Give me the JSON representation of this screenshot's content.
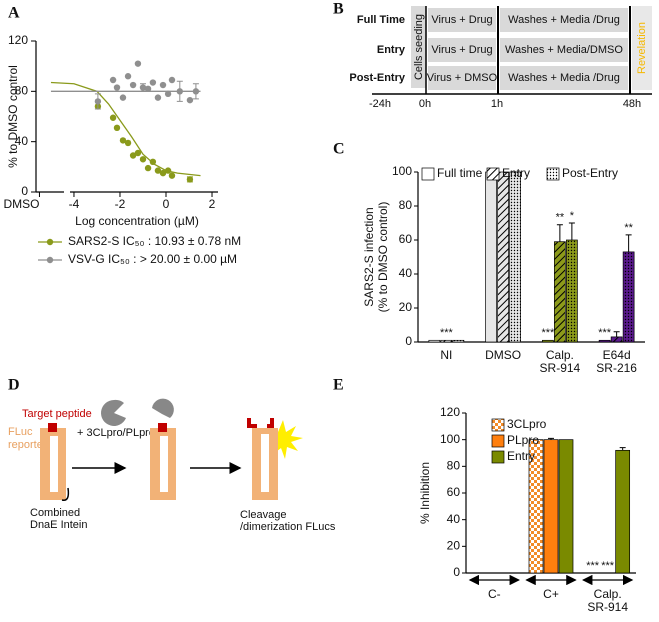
{
  "letters": [
    "A",
    "B",
    "C",
    "D",
    "E"
  ],
  "schedule": {
    "rows": [
      "Full Time",
      "Entry",
      "Post-Entry"
    ],
    "cells": [
      [
        "Virus + Drug",
        "Washes + Media /Drug"
      ],
      [
        "Virus + Drug",
        "Washes + Media/DMSO"
      ],
      [
        "Virus + DMSO",
        "Washes + Media /Drug"
      ]
    ],
    "seeding": "Cells seeding",
    "revelation": "Revelation",
    "times": [
      "-24h",
      "0h",
      "1h",
      "48h"
    ]
  },
  "assay": {
    "target": "Target peptide",
    "reporter": [
      "FLuc",
      "reporter"
    ],
    "intein": [
      "Combined",
      "DnaE Intein"
    ],
    "protease": "+ 3CLpro/PLpro",
    "result": [
      "Cleavage",
      "/dimerization FLucs"
    ]
  },
  "chart_data": [
    {
      "type": "scatter",
      "xlabel": "Log concentration (µM)",
      "ylabel": "% to DMSO control",
      "xlim": [
        -5.65,
        2.26
      ],
      "ylim": [
        0,
        120
      ],
      "xticks": [
        {
          "value": -5.5,
          "label": "DMSO"
        },
        -4,
        -2,
        0,
        2
      ],
      "yticks": [
        0,
        40,
        80,
        120
      ],
      "series": [
        {
          "name": "SARS2-S IC₅₀ : 10.93 ± 0.78 nM",
          "color": "#8a9a1b",
          "x": [
            -2.96,
            -2.3,
            -2.13,
            -1.87,
            -1.65,
            -1.43,
            -1.22,
            -1.0,
            -0.78,
            -0.57,
            -0.35,
            -0.13,
            0.09,
            0.26,
            1.04
          ],
          "values": [
            68,
            59,
            51,
            41,
            39,
            29,
            31,
            26,
            19,
            24,
            17,
            15,
            17,
            13,
            10
          ],
          "errors": [
            null,
            null,
            null,
            null,
            null,
            null,
            null,
            null,
            null,
            null,
            null,
            null,
            null,
            null,
            2
          ],
          "fit": {
            "x": [
              -5,
              -4,
              -3,
              -2.5,
              -2,
              -1.5,
              -1,
              -0.5,
              0,
              0.5,
              1,
              1.5
            ],
            "values": [
              87,
              86,
              80,
              70,
              57,
              44,
              30,
              22,
              17,
              15,
              14,
              13
            ]
          }
        },
        {
          "name": "VSV-G IC₅₀ : > 20.00 ± 0.00 µM",
          "color": "#8f8f8f",
          "x": [
            -2.96,
            -2.3,
            -2.13,
            -1.87,
            -1.65,
            -1.43,
            -1.22,
            -1.0,
            -0.78,
            -0.57,
            -0.35,
            -0.13,
            0.09,
            0.26,
            0.6,
            1.04,
            1.3
          ],
          "values": [
            72,
            89,
            83,
            75,
            92,
            85,
            102,
            83,
            82,
            87,
            75,
            85,
            78,
            89,
            80,
            73,
            80
          ],
          "errors": [
            6,
            null,
            null,
            null,
            null,
            null,
            null,
            3,
            null,
            null,
            null,
            null,
            null,
            null,
            8,
            null,
            6
          ],
          "fit": {
            "x": [
              -5,
              1.5
            ],
            "values": [
              80,
              80
            ]
          }
        }
      ]
    },
    {
      "type": "bar",
      "ylabel": [
        "SARS2-S infection",
        "(% to DMSO control)"
      ],
      "categories": [
        [
          "NI"
        ],
        [
          "DMSO"
        ],
        [
          "Calp.",
          "SR-914"
        ],
        [
          "E64d",
          "SR-216"
        ]
      ],
      "category_colors": [
        "#ffffff",
        "#e6e6e6",
        "#8c9a1a",
        "#5a1a8c"
      ],
      "ylim": [
        0,
        100
      ],
      "yticks": [
        0,
        20,
        40,
        60,
        80,
        100
      ],
      "series": [
        {
          "name": "Full time",
          "pattern": "none",
          "values": [
            1,
            100,
            1,
            1
          ],
          "errors": [
            null,
            null,
            null,
            null
          ],
          "significance": [
            null,
            null,
            "***",
            "***"
          ]
        },
        {
          "name": "Entry",
          "pattern": "hatch",
          "values": [
            1,
            100,
            59,
            3
          ],
          "errors": [
            null,
            null,
            10,
            3
          ],
          "significance": [
            "***",
            null,
            "**",
            null
          ]
        },
        {
          "name": "Post-Entry",
          "pattern": "dots",
          "values": [
            1,
            100,
            60,
            53
          ],
          "errors": [
            null,
            null,
            10,
            10
          ],
          "significance": [
            null,
            null,
            "*",
            "**"
          ]
        }
      ]
    },
    {
      "type": "bar",
      "ylabel": "% Inhibition",
      "categories": [
        [
          "C-"
        ],
        [
          "C+"
        ],
        [
          "Calp.",
          "SR-914"
        ]
      ],
      "ylim": [
        0,
        120
      ],
      "yticks": [
        0,
        20,
        40,
        60,
        80,
        100,
        120
      ],
      "series": [
        {
          "name": "3CLpro",
          "color": "#f28c28",
          "pattern": "checker",
          "values": [
            null,
            100,
            0
          ],
          "errors": [
            null,
            null,
            null
          ],
          "significance": [
            null,
            null,
            "***"
          ]
        },
        {
          "name": "PLpro",
          "color": "#ff7f0e",
          "pattern": "none",
          "values": [
            null,
            100,
            0
          ],
          "errors": [
            null,
            1,
            null
          ],
          "significance": [
            null,
            null,
            "***"
          ]
        },
        {
          "name": "Entry",
          "color": "#7a8a00",
          "pattern": "none",
          "values": [
            null,
            100,
            92
          ],
          "errors": [
            null,
            null,
            2
          ],
          "significance": [
            null,
            null,
            null
          ]
        }
      ]
    }
  ]
}
